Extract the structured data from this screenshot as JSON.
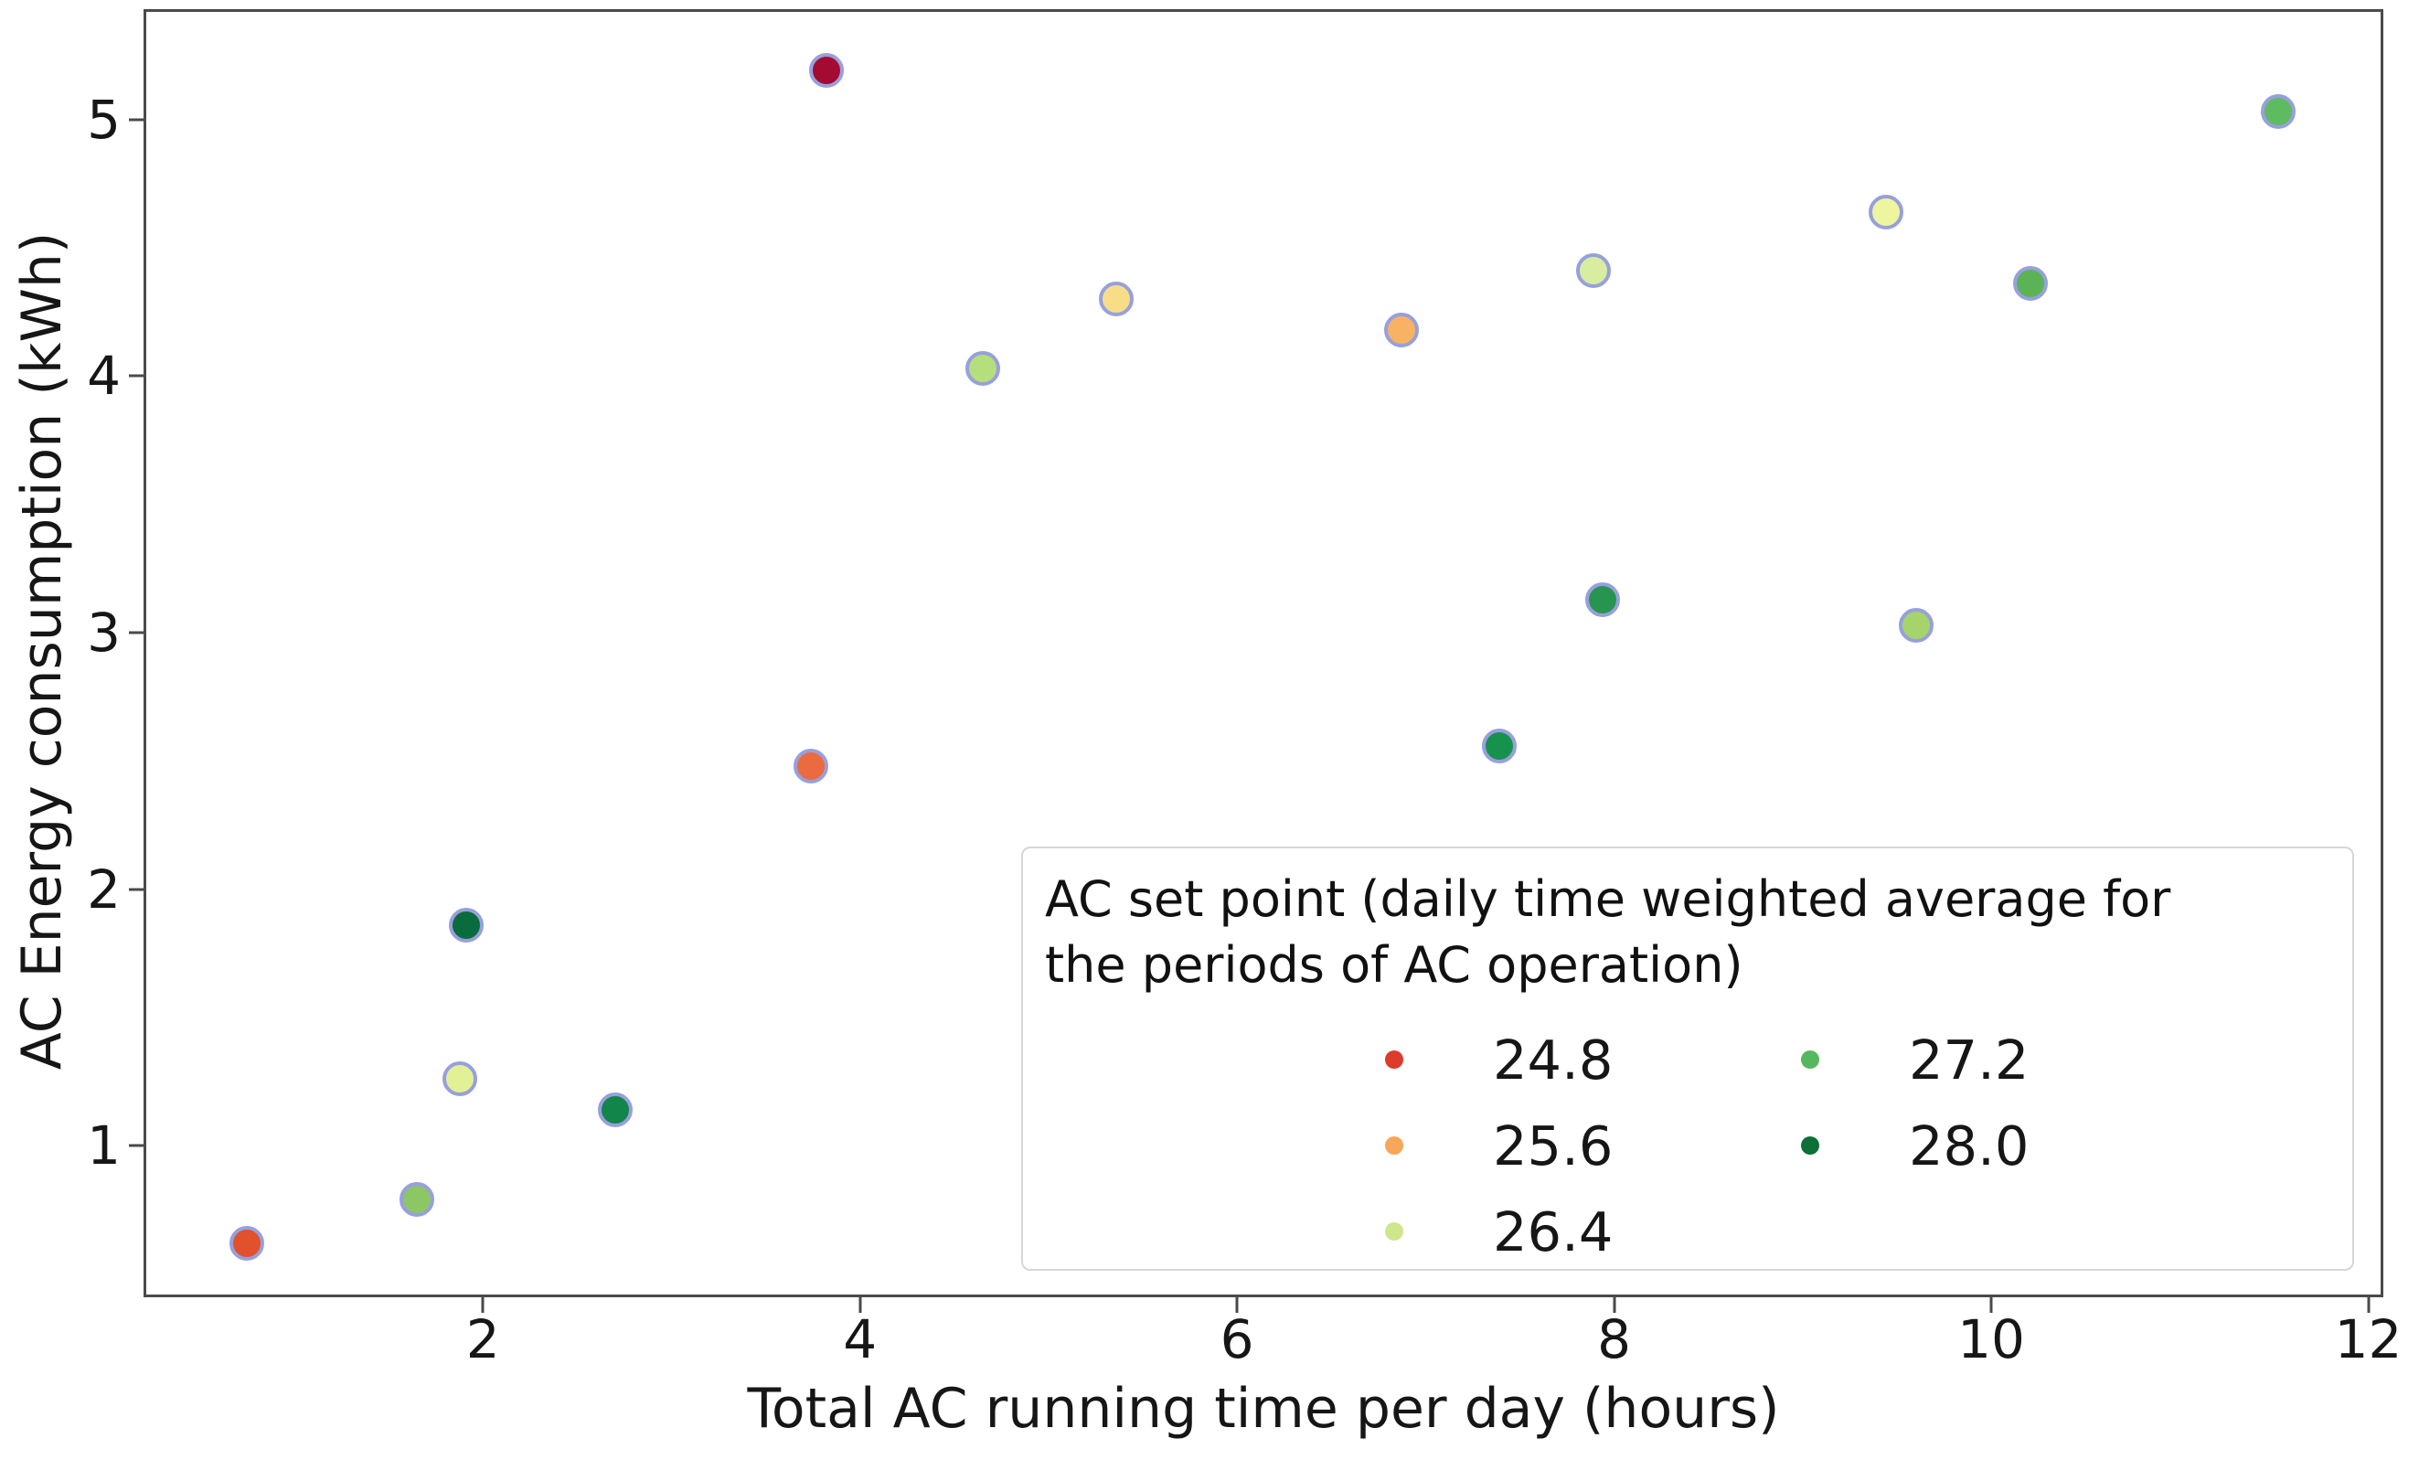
{
  "chart_data": {
    "type": "scatter",
    "xlabel": "Total AC running time per day (hours)",
    "ylabel": "AC Energy consumption (kWh)",
    "xlim": [
      0.2,
      12.08
    ],
    "ylim": [
      0.41,
      5.43
    ],
    "xticks": [
      2,
      4,
      6,
      8,
      10,
      12
    ],
    "yticks": [
      1,
      2,
      3,
      4,
      5
    ],
    "grid": false,
    "legend_position": "lower right",
    "marker": {
      "edge_color": "#97a0dc"
    },
    "points": [
      {
        "x": 0.75,
        "y": 0.62,
        "color": "#e0512c"
      },
      {
        "x": 1.65,
        "y": 0.79,
        "color": "#8cc665"
      },
      {
        "x": 1.88,
        "y": 1.26,
        "color": "#e2f195"
      },
      {
        "x": 1.91,
        "y": 1.86,
        "color": "#0a6b3d"
      },
      {
        "x": 2.7,
        "y": 1.14,
        "color": "#12854a"
      },
      {
        "x": 3.74,
        "y": 2.48,
        "color": "#ec6a3f"
      },
      {
        "x": 3.82,
        "y": 5.19,
        "color": "#a30b33"
      },
      {
        "x": 4.65,
        "y": 4.03,
        "color": "#b5de7d"
      },
      {
        "x": 5.36,
        "y": 4.3,
        "color": "#f7dd87"
      },
      {
        "x": 6.87,
        "y": 4.18,
        "color": "#f8b264"
      },
      {
        "x": 7.39,
        "y": 2.56,
        "color": "#17924d"
      },
      {
        "x": 7.94,
        "y": 3.13,
        "color": "#27954f"
      },
      {
        "x": 7.89,
        "y": 4.41,
        "color": "#d8eda0"
      },
      {
        "x": 9.44,
        "y": 4.64,
        "color": "#edf59e"
      },
      {
        "x": 9.6,
        "y": 3.03,
        "color": "#a6d46a"
      },
      {
        "x": 10.21,
        "y": 4.36,
        "color": "#5cb356"
      },
      {
        "x": 11.52,
        "y": 5.03,
        "color": "#5fbb61"
      }
    ],
    "legend": {
      "title_lines": [
        "AC set point (daily time weighted average for",
        "the periods of AC operation)"
      ],
      "columns": [
        [
          {
            "label": "24.8",
            "color": "#dd3b2b"
          },
          {
            "label": "25.6",
            "color": "#f6a75a"
          },
          {
            "label": "26.4",
            "color": "#cfe68b"
          }
        ],
        [
          {
            "label": "27.2",
            "color": "#57b75e"
          },
          {
            "label": "28.0",
            "color": "#0c7038"
          }
        ]
      ]
    }
  }
}
